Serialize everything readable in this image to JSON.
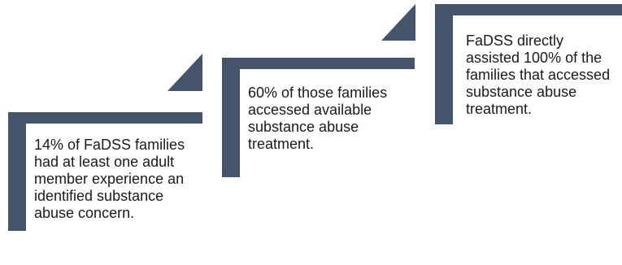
{
  "colors": {
    "shape": "#44546a",
    "text": "#1a1a1a",
    "background": "#ffffff"
  },
  "steps": [
    {
      "text": "14% of FaDSS families had at least one adult member experience an identified substance abuse concern."
    },
    {
      "text": "60% of those families accessed available substance abuse treatment."
    },
    {
      "text": "FaDSS directly assisted 100% of the families that accessed substance abuse treatment."
    }
  ]
}
